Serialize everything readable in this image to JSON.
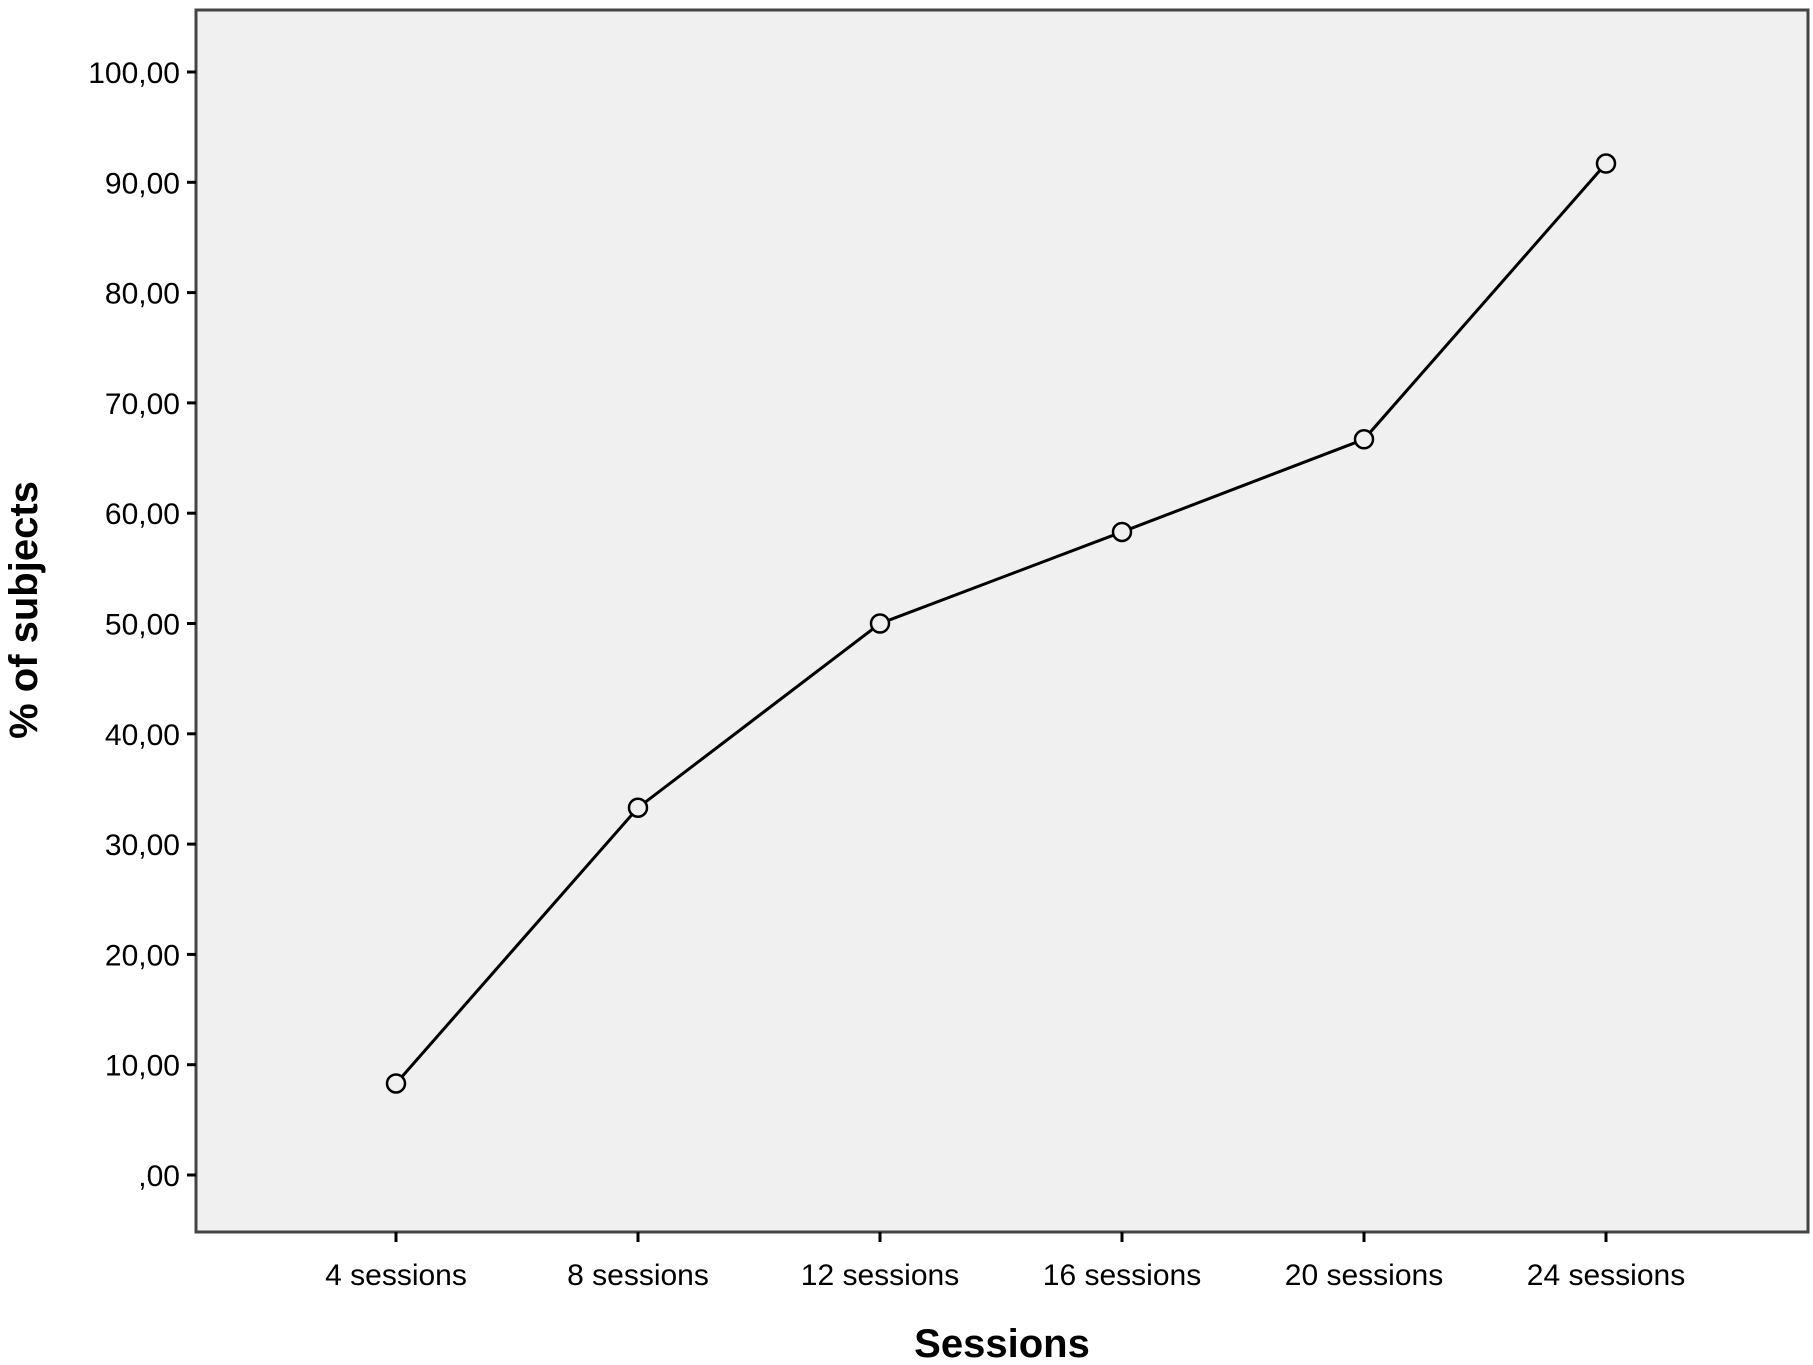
{
  "chart_data": {
    "type": "line",
    "title": "",
    "xlabel": "Sessions",
    "ylabel": "% of subjects",
    "categories": [
      "4 sessions",
      "8 sessions",
      "12 sessions",
      "16 sessions",
      "20 sessions",
      "24 sessions"
    ],
    "series": [
      {
        "values": [
          8.3,
          33.3,
          50.0,
          58.3,
          66.7,
          91.7
        ]
      }
    ],
    "ylim": [
      -5,
      105
    ],
    "yticks": [
      0,
      10,
      20,
      30,
      40,
      50,
      60,
      70,
      80,
      90,
      100
    ],
    "ytick_labels": [
      ",00",
      "10,00",
      "20,00",
      "30,00",
      "40,00",
      "50,00",
      "60,00",
      "70,00",
      "80,00",
      "90,00",
      "100,00"
    ],
    "grid": false,
    "legend": "none",
    "marker": "open-circle",
    "colors": {
      "plot_background": "#f0f0f0",
      "line": "#000000",
      "frame": "#444444"
    }
  }
}
